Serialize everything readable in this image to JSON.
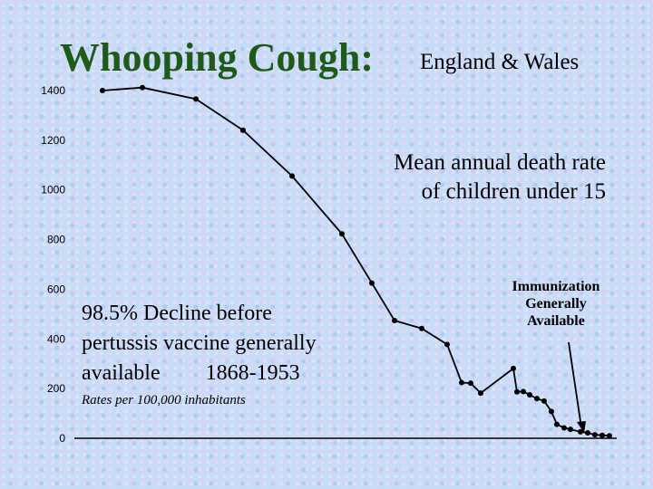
{
  "slide": {
    "title": "Whooping Cough:",
    "subtitle": "England & Wales",
    "description_line1": "Mean annual death rate",
    "description_line2": "of children under 15",
    "decline_line1": "98.5% Decline before",
    "decline_line2": "pertussis vaccine generally",
    "decline_line3": "available",
    "decline_years": "1868-1953",
    "rates_note": "Rates per 100,000 inhabitants",
    "immunization_label_line1": "Immunization",
    "immunization_label_line2": "Generally",
    "immunization_label_line3": "Available"
  },
  "chart_data": {
    "type": "line",
    "title": "Whooping Cough: England & Wales",
    "ylabel": "",
    "xlabel": "",
    "ylim": [
      0,
      1400
    ],
    "yticks": [
      0,
      200,
      400,
      600,
      800,
      1000,
      1200,
      1400
    ],
    "grid": false,
    "line_color": "#000000",
    "series": [
      {
        "values": [
          1400,
          1412,
          1366,
          1240,
          1056,
          823,
          625,
          474,
          442,
          378,
          224,
          222,
          182,
          281,
          187,
          188,
          175,
          160,
          150,
          108,
          56,
          42,
          36,
          26,
          22,
          14,
          12,
          10
        ]
      }
    ]
  }
}
